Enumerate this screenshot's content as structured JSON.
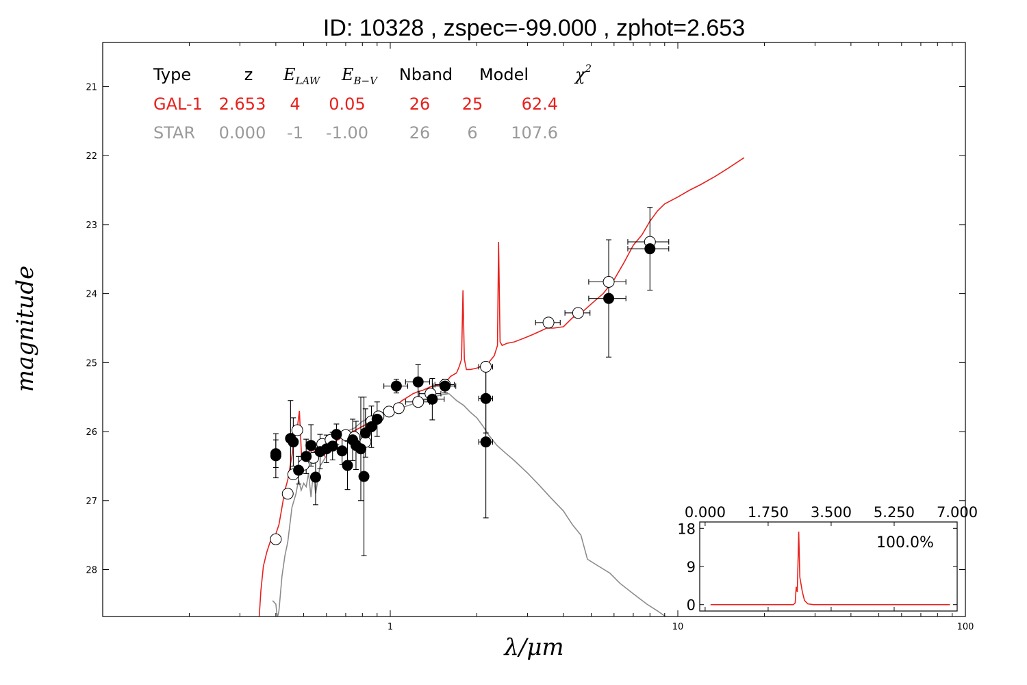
{
  "title": "ID:  10328 , zspec=-99.000 , zphot=2.653",
  "chart_data": {
    "type": "scatter",
    "xlabel": "λ/μm",
    "ylabel": "magnitude",
    "xscale": "log",
    "xlim": [
      0.1,
      100
    ],
    "ylim": [
      28.68,
      20.36
    ],
    "xticks": [
      {
        "v": 1,
        "label": "1"
      },
      {
        "v": 10,
        "label": "10"
      },
      {
        "v": 100,
        "label": "100"
      }
    ],
    "yticks": [
      {
        "v": 21,
        "label": "21"
      },
      {
        "v": 22,
        "label": "22"
      },
      {
        "v": 23,
        "label": "23"
      },
      {
        "v": 24,
        "label": "24"
      },
      {
        "v": 25,
        "label": "25"
      },
      {
        "v": 26,
        "label": "26"
      },
      {
        "v": 27,
        "label": "27"
      },
      {
        "v": 28,
        "label": "28"
      }
    ],
    "table": {
      "headers": {
        "type": "Type",
        "z": "z",
        "elaw": "E",
        "elaw_sub": "LAW",
        "ebv": "E",
        "ebv_sub": "B−V",
        "nband": "Nband",
        "model": "Model",
        "chi": "χ",
        "chi_sup": "2"
      },
      "rows": [
        {
          "type": "GAL-1",
          "z": "2.653",
          "elaw": "4",
          "ebv": "0.05",
          "nband": "26",
          "model": "25",
          "chi2": "62.4",
          "color": "#e8211d"
        },
        {
          "type": "STAR",
          "z": "0.000",
          "elaw": "-1",
          "ebv": "-1.00",
          "nband": "26",
          "model": "6",
          "chi2": "107.6",
          "color": "#9a9a9a"
        }
      ]
    },
    "series": [
      {
        "name": "GAL-1",
        "color": "#e8211d",
        "points": [
          [
            0.35,
            28.7
          ],
          [
            0.355,
            28.3
          ],
          [
            0.362,
            27.95
          ],
          [
            0.372,
            27.75
          ],
          [
            0.382,
            27.6
          ],
          [
            0.395,
            27.55
          ],
          [
            0.41,
            27.35
          ],
          [
            0.42,
            27.1
          ],
          [
            0.43,
            26.85
          ],
          [
            0.44,
            26.7
          ],
          [
            0.455,
            26.35
          ],
          [
            0.465,
            26.05
          ],
          [
            0.475,
            25.95
          ],
          [
            0.483,
            25.7
          ],
          [
            0.492,
            26.4
          ],
          [
            0.51,
            26.35
          ],
          [
            0.53,
            26.25
          ],
          [
            0.55,
            26.3
          ],
          [
            0.57,
            26.2
          ],
          [
            0.59,
            26.35
          ],
          [
            0.61,
            26.1
          ],
          [
            0.64,
            26.15
          ],
          [
            0.67,
            26.1
          ],
          [
            0.7,
            26.05
          ],
          [
            0.74,
            26.0
          ],
          [
            0.78,
            25.95
          ],
          [
            0.82,
            25.9
          ],
          [
            0.86,
            25.85
          ],
          [
            0.9,
            25.8
          ],
          [
            0.95,
            25.72
          ],
          [
            1.0,
            25.68
          ],
          [
            1.05,
            25.62
          ],
          [
            1.1,
            25.55
          ],
          [
            1.15,
            25.5
          ],
          [
            1.2,
            25.45
          ],
          [
            1.25,
            25.42
          ],
          [
            1.3,
            25.4
          ],
          [
            1.38,
            25.35
          ],
          [
            1.45,
            25.33
          ],
          [
            1.55,
            25.3
          ],
          [
            1.62,
            25.2
          ],
          [
            1.7,
            25.15
          ],
          [
            1.74,
            25.05
          ],
          [
            1.77,
            24.95
          ],
          [
            1.79,
            23.95
          ],
          [
            1.81,
            24.95
          ],
          [
            1.84,
            25.1
          ],
          [
            1.9,
            25.1
          ],
          [
            2.0,
            25.08
          ],
          [
            2.1,
            25.05
          ],
          [
            2.2,
            25.0
          ],
          [
            2.3,
            24.9
          ],
          [
            2.36,
            24.75
          ],
          [
            2.38,
            23.25
          ],
          [
            2.41,
            24.7
          ],
          [
            2.45,
            24.75
          ],
          [
            2.55,
            24.72
          ],
          [
            2.7,
            24.7
          ],
          [
            2.9,
            24.65
          ],
          [
            3.1,
            24.6
          ],
          [
            3.3,
            24.55
          ],
          [
            3.5,
            24.5
          ],
          [
            3.7,
            24.5
          ],
          [
            4.0,
            24.48
          ],
          [
            4.3,
            24.35
          ],
          [
            4.7,
            24.25
          ],
          [
            5.0,
            24.15
          ],
          [
            5.5,
            24.0
          ],
          [
            6.0,
            23.8
          ],
          [
            6.5,
            23.55
          ],
          [
            7.0,
            23.3
          ],
          [
            7.5,
            23.15
          ],
          [
            8.0,
            22.95
          ],
          [
            8.5,
            22.8
          ],
          [
            9.0,
            22.7
          ],
          [
            10.0,
            22.6
          ],
          [
            11.0,
            22.5
          ],
          [
            12.0,
            22.42
          ],
          [
            13.5,
            22.3
          ],
          [
            15.0,
            22.18
          ],
          [
            17.0,
            22.03
          ]
        ]
      },
      {
        "name": "STAR",
        "color": "#8c8c8c",
        "points": [
          [
            0.39,
            28.45
          ],
          [
            0.4,
            28.5
          ],
          [
            0.405,
            28.7
          ],
          [
            0.41,
            28.6
          ],
          [
            0.42,
            28.1
          ],
          [
            0.43,
            27.8
          ],
          [
            0.44,
            27.6
          ],
          [
            0.455,
            27.1
          ],
          [
            0.47,
            26.9
          ],
          [
            0.48,
            26.7
          ],
          [
            0.49,
            26.85
          ],
          [
            0.5,
            26.75
          ],
          [
            0.51,
            26.8
          ],
          [
            0.52,
            26.6
          ],
          [
            0.53,
            26.95
          ],
          [
            0.54,
            26.6
          ],
          [
            0.55,
            26.9
          ],
          [
            0.56,
            26.7
          ],
          [
            0.57,
            26.5
          ],
          [
            0.6,
            26.35
          ],
          [
            0.62,
            26.15
          ],
          [
            0.66,
            26.05
          ],
          [
            0.7,
            26.0
          ],
          [
            0.75,
            25.95
          ],
          [
            0.8,
            25.85
          ],
          [
            0.87,
            25.78
          ],
          [
            0.95,
            25.72
          ],
          [
            1.0,
            25.7
          ],
          [
            1.05,
            25.67
          ],
          [
            1.1,
            25.65
          ],
          [
            1.2,
            25.6
          ],
          [
            1.3,
            25.55
          ],
          [
            1.4,
            25.5
          ],
          [
            1.5,
            25.47
          ],
          [
            1.6,
            25.45
          ],
          [
            1.7,
            25.55
          ],
          [
            1.8,
            25.62
          ],
          [
            1.9,
            25.72
          ],
          [
            2.0,
            25.8
          ],
          [
            2.1,
            25.92
          ],
          [
            2.2,
            26.05
          ],
          [
            2.35,
            26.2
          ],
          [
            2.5,
            26.3
          ],
          [
            2.7,
            26.42
          ],
          [
            3.0,
            26.6
          ],
          [
            3.3,
            26.78
          ],
          [
            3.6,
            26.95
          ],
          [
            4.0,
            27.15
          ],
          [
            4.3,
            27.35
          ],
          [
            4.6,
            27.5
          ],
          [
            4.85,
            27.85
          ],
          [
            5.3,
            27.95
          ],
          [
            5.8,
            28.05
          ],
          [
            6.3,
            28.2
          ],
          [
            7.0,
            28.35
          ],
          [
            7.8,
            28.5
          ],
          [
            8.5,
            28.6
          ],
          [
            9.2,
            28.7
          ]
        ]
      }
    ],
    "model_points": [
      {
        "x": 0.4,
        "y": 27.56,
        "xerr": 0.008
      },
      {
        "x": 0.44,
        "y": 26.9,
        "xerr": 0.01
      },
      {
        "x": 0.46,
        "y": 26.62,
        "xerr": 0.015
      },
      {
        "x": 0.475,
        "y": 25.98,
        "xerr": 0.01
      },
      {
        "x": 0.5,
        "y": 26.48,
        "xerr": 0.015
      },
      {
        "x": 0.54,
        "y": 26.38,
        "xerr": 0.02
      },
      {
        "x": 0.58,
        "y": 26.18,
        "xerr": 0.02
      },
      {
        "x": 0.62,
        "y": 26.12,
        "xerr": 0.02
      },
      {
        "x": 0.7,
        "y": 26.05,
        "xerr": 0.03
      },
      {
        "x": 0.75,
        "y": 26.08,
        "xerr": 0.03
      },
      {
        "x": 0.82,
        "y": 26.15,
        "xerr": 0.03
      },
      {
        "x": 0.86,
        "y": 25.85,
        "xerr": 0.03
      },
      {
        "x": 0.91,
        "y": 25.78,
        "xerr": 0.03
      },
      {
        "x": 0.99,
        "y": 25.71,
        "xerr": 0.04
      },
      {
        "x": 1.07,
        "y": 25.66,
        "xerr": 0.04
      },
      {
        "x": 1.25,
        "y": 25.57,
        "xerr": 0.12
      },
      {
        "x": 1.38,
        "y": 25.45,
        "xerr": 0.12
      },
      {
        "x": 1.55,
        "y": 25.32,
        "xerr": 0.12
      },
      {
        "x": 2.15,
        "y": 25.06,
        "xerr": 0.12
      },
      {
        "x": 3.55,
        "y": 24.42,
        "xerr": 0.35
      },
      {
        "x": 4.5,
        "y": 24.28,
        "xerr": 0.45
      },
      {
        "x": 5.75,
        "y": 23.83,
        "xerr": 0.85
      },
      {
        "x": 8.0,
        "y": 23.25,
        "xerr": 1.3
      }
    ],
    "observed_points": [
      {
        "x": 0.4,
        "y": 26.35,
        "xerr": 0.008,
        "yerr": 0.32
      },
      {
        "x": 0.4,
        "y": 26.32,
        "xerr": 0.008,
        "yerr": 0.2
      },
      {
        "x": 0.45,
        "y": 26.1,
        "xerr": 0.01,
        "yerr": 0.55
      },
      {
        "x": 0.46,
        "y": 26.15,
        "xerr": 0.01,
        "yerr": 0.35
      },
      {
        "x": 0.48,
        "y": 26.56,
        "xerr": 0.01,
        "yerr": 0.2
      },
      {
        "x": 0.51,
        "y": 26.36,
        "xerr": 0.015,
        "yerr": 0.25
      },
      {
        "x": 0.53,
        "y": 26.2,
        "xerr": 0.015,
        "yerr": 0.3
      },
      {
        "x": 0.55,
        "y": 26.66,
        "xerr": 0.015,
        "yerr": 0.4
      },
      {
        "x": 0.57,
        "y": 26.29,
        "xerr": 0.015,
        "yerr": 0.25
      },
      {
        "x": 0.6,
        "y": 26.25,
        "xerr": 0.02,
        "yerr": 0.2
      },
      {
        "x": 0.63,
        "y": 26.21,
        "xerr": 0.02,
        "yerr": 0.2
      },
      {
        "x": 0.65,
        "y": 26.04,
        "xerr": 0.02,
        "yerr": 0.15
      },
      {
        "x": 0.68,
        "y": 26.28,
        "xerr": 0.02,
        "yerr": 0.2
      },
      {
        "x": 0.71,
        "y": 26.49,
        "xerr": 0.02,
        "yerr": 0.35
      },
      {
        "x": 0.74,
        "y": 26.12,
        "xerr": 0.02,
        "yerr": 0.3
      },
      {
        "x": 0.76,
        "y": 26.2,
        "xerr": 0.02,
        "yerr": 0.35
      },
      {
        "x": 0.79,
        "y": 26.25,
        "xerr": 0.02,
        "yerr": 0.75
      },
      {
        "x": 0.81,
        "y": 26.65,
        "xerr": 0.02,
        "yerr": 1.15
      },
      {
        "x": 0.82,
        "y": 26.02,
        "xerr": 0.03,
        "yerr": 0.35
      },
      {
        "x": 0.86,
        "y": 25.93,
        "xerr": 0.03,
        "yerr": 0.3
      },
      {
        "x": 0.9,
        "y": 25.82,
        "xerr": 0.03,
        "yerr": 0.25
      },
      {
        "x": 1.05,
        "y": 25.34,
        "xerr": 0.1,
        "yerr": 0.1
      },
      {
        "x": 1.25,
        "y": 25.28,
        "xerr": 0.12,
        "yerr": 0.25
      },
      {
        "x": 1.4,
        "y": 25.53,
        "xerr": 0.14,
        "yerr": 0.3
      },
      {
        "x": 1.55,
        "y": 25.34,
        "xerr": 0.14,
        "yerr": 0.1
      },
      {
        "x": 2.15,
        "y": 25.52,
        "xerr": 0.12,
        "yerr": 0.5
      },
      {
        "x": 2.15,
        "y": 26.15,
        "xerr": 0.12,
        "yerr": 1.1
      },
      {
        "x": 5.75,
        "y": 24.07,
        "xerr": 0.85,
        "yerr": 0.85
      },
      {
        "x": 8.0,
        "y": 23.35,
        "xerr": 1.3,
        "yerr": 0.6
      }
    ],
    "inset": {
      "type": "line",
      "xlim": [
        -0.15,
        7.0
      ],
      "ylim": [
        -1.5,
        19.5
      ],
      "top_ticks": [
        {
          "v": 0,
          "label": "0.000"
        },
        {
          "v": 1.75,
          "label": "1.750"
        },
        {
          "v": 3.5,
          "label": "3.500"
        },
        {
          "v": 5.25,
          "label": "5.250"
        },
        {
          "v": 7.0,
          "label": "7.000"
        }
      ],
      "left_ticks": [
        {
          "v": 0,
          "label": "0"
        },
        {
          "v": 9,
          "label": "9"
        },
        {
          "v": 18,
          "label": "18"
        }
      ],
      "percent_label": "100.0%",
      "color": "#e8211d",
      "points": [
        [
          0.15,
          0
        ],
        [
          2.45,
          0
        ],
        [
          2.5,
          0.4
        ],
        [
          2.53,
          4.2
        ],
        [
          2.56,
          3.0
        ],
        [
          2.6,
          17.2
        ],
        [
          2.63,
          6.5
        ],
        [
          2.7,
          3.0
        ],
        [
          2.76,
          1.0
        ],
        [
          2.85,
          0.2
        ],
        [
          3.0,
          0
        ],
        [
          6.8,
          0
        ]
      ]
    }
  }
}
